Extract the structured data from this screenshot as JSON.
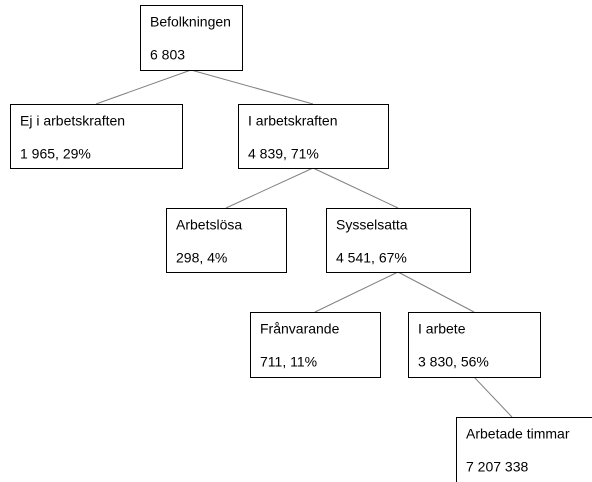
{
  "nodes": [
    {
      "label": "Befolkningen",
      "value": "6 803"
    },
    {
      "label": "Ej i arbetskraften",
      "value": "1 965, 29%"
    },
    {
      "label": "I arbetskraften",
      "value": "4 839, 71%"
    },
    {
      "label": "Arbetslösa",
      "value": "298, 4%"
    },
    {
      "label": "Sysselsatta",
      "value": "4 541, 67%"
    },
    {
      "label": "Frånvarande",
      "value": "711, 11%"
    },
    {
      "label": "I arbete",
      "value": "3 830, 56%"
    },
    {
      "label": "Arbetade timmar",
      "value": "7 207 338"
    }
  ]
}
